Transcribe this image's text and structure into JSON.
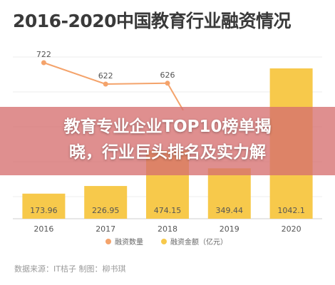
{
  "chart_data": {
    "type": "bar",
    "title": "2016-2020中国教育行业融资情况",
    "categories": [
      "2016",
      "2017",
      "2018",
      "2019",
      "2020"
    ],
    "series": [
      {
        "name": "融资金额（亿元）",
        "type": "bar",
        "values": [
          173.96,
          226.95,
          474.15,
          349.44,
          1042.1
        ],
        "color": "#f7c94b"
      },
      {
        "name": "融资数量",
        "type": "line",
        "values": [
          722,
          622,
          626,
          null,
          null
        ],
        "color": "#f4a36b"
      }
    ],
    "grid": true,
    "legend": "bottom"
  },
  "overlay": {
    "line1": "教育专业企业TOP10榜单揭",
    "line2": "晓，行业巨头排名及实力解"
  },
  "source": "数据来源：IT桔子 制图：柳书琪"
}
